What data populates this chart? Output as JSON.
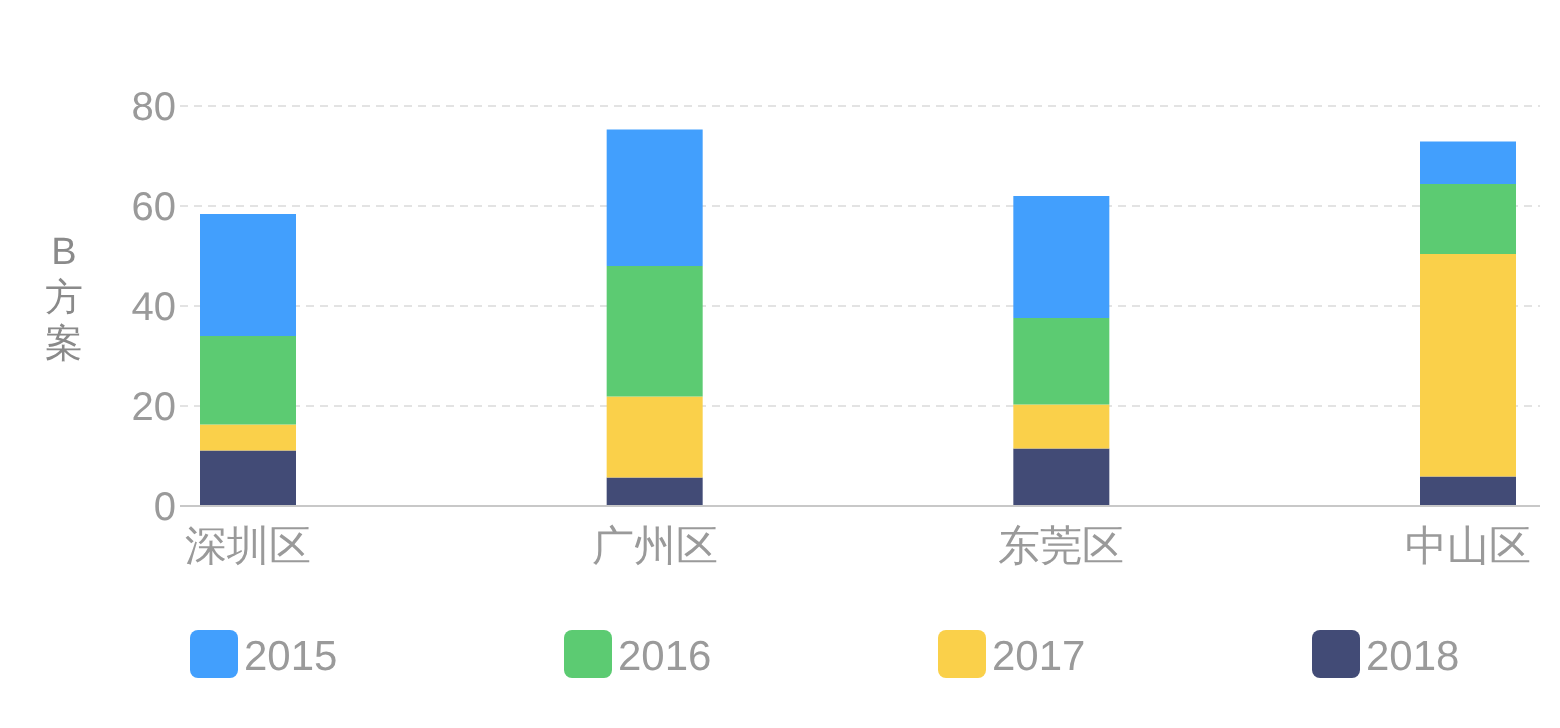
{
  "chart_data": {
    "type": "bar",
    "stacked": true,
    "ylabel": "B方案",
    "categories": [
      "深圳区",
      "广州区",
      "东莞区",
      "中山区"
    ],
    "series": [
      {
        "name": "2018",
        "color": "#424b76",
        "values": [
          11.1,
          5.7,
          11.5,
          5.9
        ]
      },
      {
        "name": "2017",
        "color": "#fad04a",
        "values": [
          5.2,
          16.2,
          8.8,
          44.5
        ]
      },
      {
        "name": "2016",
        "color": "#5ccb72",
        "values": [
          17.7,
          26.1,
          17.3,
          14
        ]
      },
      {
        "name": "2015",
        "color": "#429ffd",
        "values": [
          24.4,
          27.3,
          24.4,
          8.5
        ]
      }
    ],
    "ylim": [
      0,
      80
    ],
    "yticks": [
      0,
      20,
      40,
      60,
      80
    ],
    "grid": "y",
    "legend": "bottom"
  }
}
